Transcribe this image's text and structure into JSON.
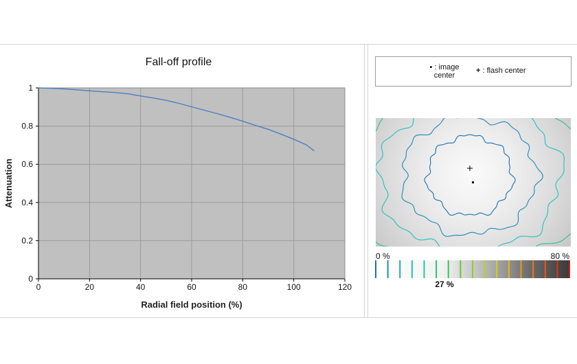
{
  "chart_data": [
    {
      "type": "line",
      "title": "Fall-off profile",
      "xlabel": "Radial field position (%)",
      "ylabel": "Attenuation",
      "xlim": [
        0,
        120
      ],
      "ylim": [
        0,
        1
      ],
      "xticks": [
        "0",
        "20",
        "40",
        "60",
        "80",
        "100",
        "120"
      ],
      "yticks": [
        "0",
        "0.2",
        "0.4",
        "0.6",
        "0.8",
        "1"
      ],
      "grid": true,
      "plot_background": "#c0c0c0",
      "series": [
        {
          "color": "#4a7fc1",
          "x": [
            0,
            5,
            10,
            15,
            20,
            25,
            30,
            35,
            40,
            45,
            50,
            55,
            60,
            65,
            70,
            75,
            80,
            85,
            90,
            95,
            100,
            105,
            108
          ],
          "y": [
            1.0,
            0.998,
            0.995,
            0.99,
            0.985,
            0.98,
            0.976,
            0.969,
            0.958,
            0.947,
            0.935,
            0.919,
            0.901,
            0.883,
            0.865,
            0.846,
            0.826,
            0.804,
            0.783,
            0.758,
            0.731,
            0.701,
            0.67
          ]
        }
      ]
    },
    {
      "type": "heatmap",
      "legend": {
        "image_center_symbol": "▪",
        "image_center_label_line1": ": image",
        "image_center_label_line2": "center",
        "flash_center_symbol": "+",
        "flash_center_label": ": flash center"
      },
      "contour_levels_percent": [
        0,
        5,
        10,
        15,
        20,
        25,
        30,
        35,
        40,
        45,
        50,
        55,
        60,
        65,
        70,
        75,
        80
      ],
      "contour_colors": [
        "#1d6fb0",
        "#1f88b8",
        "#23a5bf",
        "#23c0c0",
        "#26c7a2",
        "#29c27c",
        "#3bc84d",
        "#5ccd2a",
        "#8ad322",
        "#b4d41c",
        "#d8cf16",
        "#e8b814",
        "#ee9a12",
        "#ef7a12",
        "#ec5612",
        "#e33612",
        "#d61a16"
      ],
      "colorbar_min_label": "0 %",
      "colorbar_max_label": "80 %",
      "max_falloff_label": "27 %",
      "markers": [
        "image-center",
        "flash-center"
      ]
    }
  ]
}
